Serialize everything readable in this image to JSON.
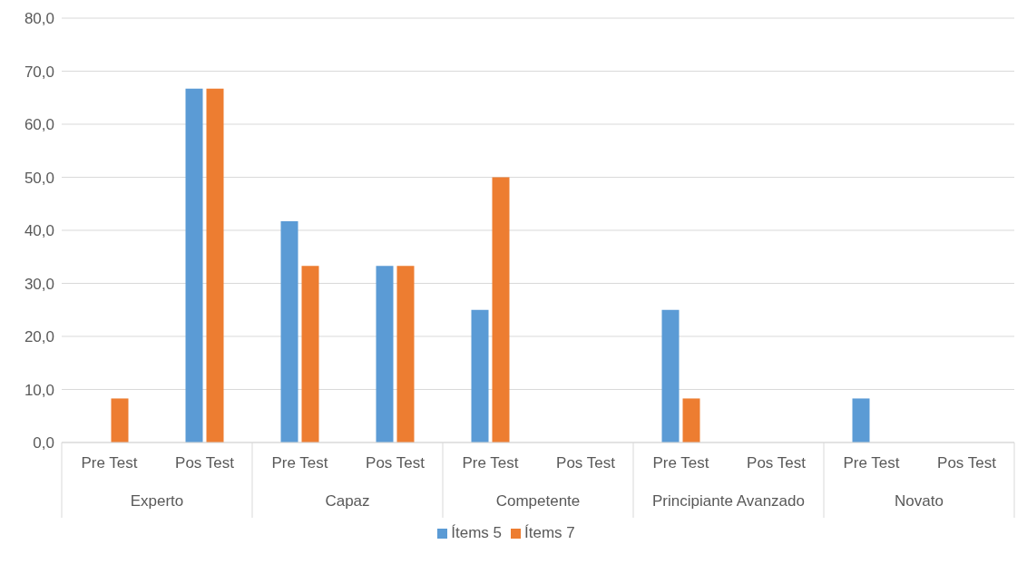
{
  "chart_data": {
    "type": "bar",
    "categories": [
      "Pre Test",
      "Pos Test",
      "Pre Test",
      "Pos Test",
      "Pre Test",
      "Pos Test",
      "Pre Test",
      "Pos Test",
      "Pre Test",
      "Pos Test"
    ],
    "annotations": [
      "Experto",
      "Capaz",
      "Competente",
      "Principiante Avanzado",
      "Novato"
    ],
    "series": [
      {
        "name": "Ítems 5",
        "color": "#5b9bd5",
        "values": [
          0,
          66.7,
          41.7,
          33.3,
          25,
          0,
          25,
          0,
          8.3,
          0
        ]
      },
      {
        "name": "Ítems 7",
        "color": "#ed7d31",
        "values": [
          8.3,
          66.7,
          33.3,
          33.3,
          50,
          0,
          8.3,
          0,
          0,
          0
        ]
      }
    ],
    "ylim": [
      0,
      80
    ],
    "yticks": [
      {
        "value": 0,
        "label": "0,0"
      },
      {
        "value": 10,
        "label": "10,0"
      },
      {
        "value": 20,
        "label": "20,0"
      },
      {
        "value": 30,
        "label": "30,0"
      },
      {
        "value": 40,
        "label": "40,0"
      },
      {
        "value": 50,
        "label": "50,0"
      },
      {
        "value": 60,
        "label": "60,0"
      },
      {
        "value": 70,
        "label": "70,0"
      },
      {
        "value": 80,
        "label": "80,0"
      }
    ],
    "grid": "y",
    "legend": "bottom"
  }
}
